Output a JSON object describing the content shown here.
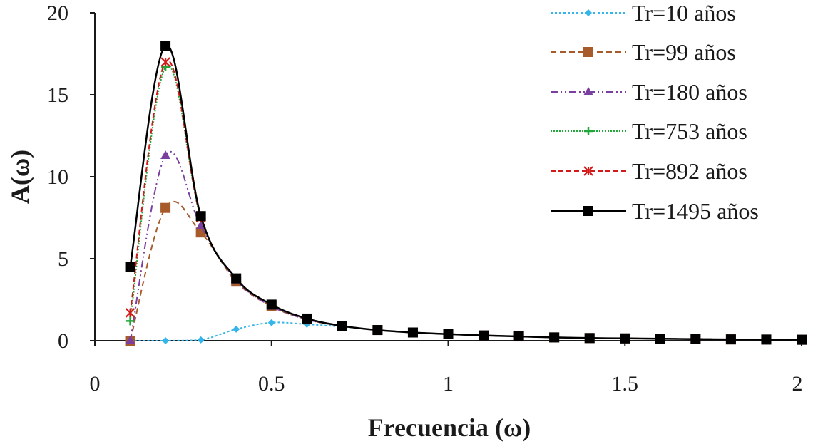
{
  "chart_data": {
    "type": "line",
    "title": "",
    "xlabel": "Frecuencia (ω)",
    "ylabel": "A(ω)",
    "xlim": [
      0,
      2
    ],
    "ylim": [
      0,
      20
    ],
    "xticks": [
      "0",
      "0.5",
      "1",
      "1.5",
      "2"
    ],
    "yticks": [
      "0",
      "5",
      "10",
      "15",
      "20"
    ],
    "grid": false,
    "legend_position": "top-right",
    "x": [
      0.1,
      0.2,
      0.3,
      0.4,
      0.5,
      0.6,
      0.7,
      0.8,
      0.9,
      1.0,
      1.1,
      1.2,
      1.3,
      1.4,
      1.5,
      1.6,
      1.7,
      1.8,
      1.9,
      2.0
    ],
    "series": [
      {
        "name": "Tr=10 años",
        "color": "#35b6ea",
        "dash": "3,3",
        "marker": "diamond",
        "values": [
          0.0,
          0.0,
          0.05,
          0.7,
          1.1,
          1.0,
          0.85,
          0.65,
          0.5,
          0.4,
          0.32,
          0.26,
          0.2,
          0.16,
          0.14,
          0.12,
          0.1,
          0.08,
          0.07,
          0.06
        ]
      },
      {
        "name": "Tr=99 años",
        "color": "#a75a2a",
        "dash": "8,5",
        "marker": "square",
        "values": [
          0.0,
          8.1,
          6.6,
          3.6,
          2.1,
          1.3,
          0.9,
          0.65,
          0.5,
          0.4,
          0.32,
          0.26,
          0.2,
          0.16,
          0.14,
          0.12,
          0.1,
          0.08,
          0.07,
          0.06
        ]
      },
      {
        "name": "Tr=180 años",
        "color": "#7b3fa0",
        "dash": "10,4,2,4,2,4",
        "marker": "triangle",
        "values": [
          0.0,
          11.3,
          7.0,
          3.7,
          2.1,
          1.3,
          0.9,
          0.65,
          0.5,
          0.4,
          0.32,
          0.26,
          0.2,
          0.16,
          0.14,
          0.12,
          0.1,
          0.08,
          0.07,
          0.06
        ]
      },
      {
        "name": "Tr=753 años",
        "color": "#22a83a",
        "dash": "2,2",
        "marker": "plus",
        "values": [
          1.2,
          16.7,
          7.5,
          3.8,
          2.2,
          1.35,
          0.9,
          0.65,
          0.5,
          0.4,
          0.32,
          0.26,
          0.2,
          0.16,
          0.14,
          0.12,
          0.1,
          0.08,
          0.07,
          0.06
        ]
      },
      {
        "name": "Tr=892 años",
        "color": "#d21a1a",
        "dash": "7,4",
        "marker": "star",
        "values": [
          1.7,
          17.0,
          7.5,
          3.8,
          2.2,
          1.35,
          0.9,
          0.65,
          0.5,
          0.4,
          0.32,
          0.26,
          0.2,
          0.16,
          0.14,
          0.12,
          0.1,
          0.08,
          0.07,
          0.06
        ]
      },
      {
        "name": "Tr=1495 años",
        "color": "#000000",
        "dash": "",
        "marker": "square",
        "values": [
          4.5,
          18.0,
          7.6,
          3.8,
          2.2,
          1.35,
          0.9,
          0.65,
          0.5,
          0.4,
          0.32,
          0.26,
          0.2,
          0.16,
          0.14,
          0.12,
          0.1,
          0.08,
          0.07,
          0.06
        ]
      }
    ]
  }
}
